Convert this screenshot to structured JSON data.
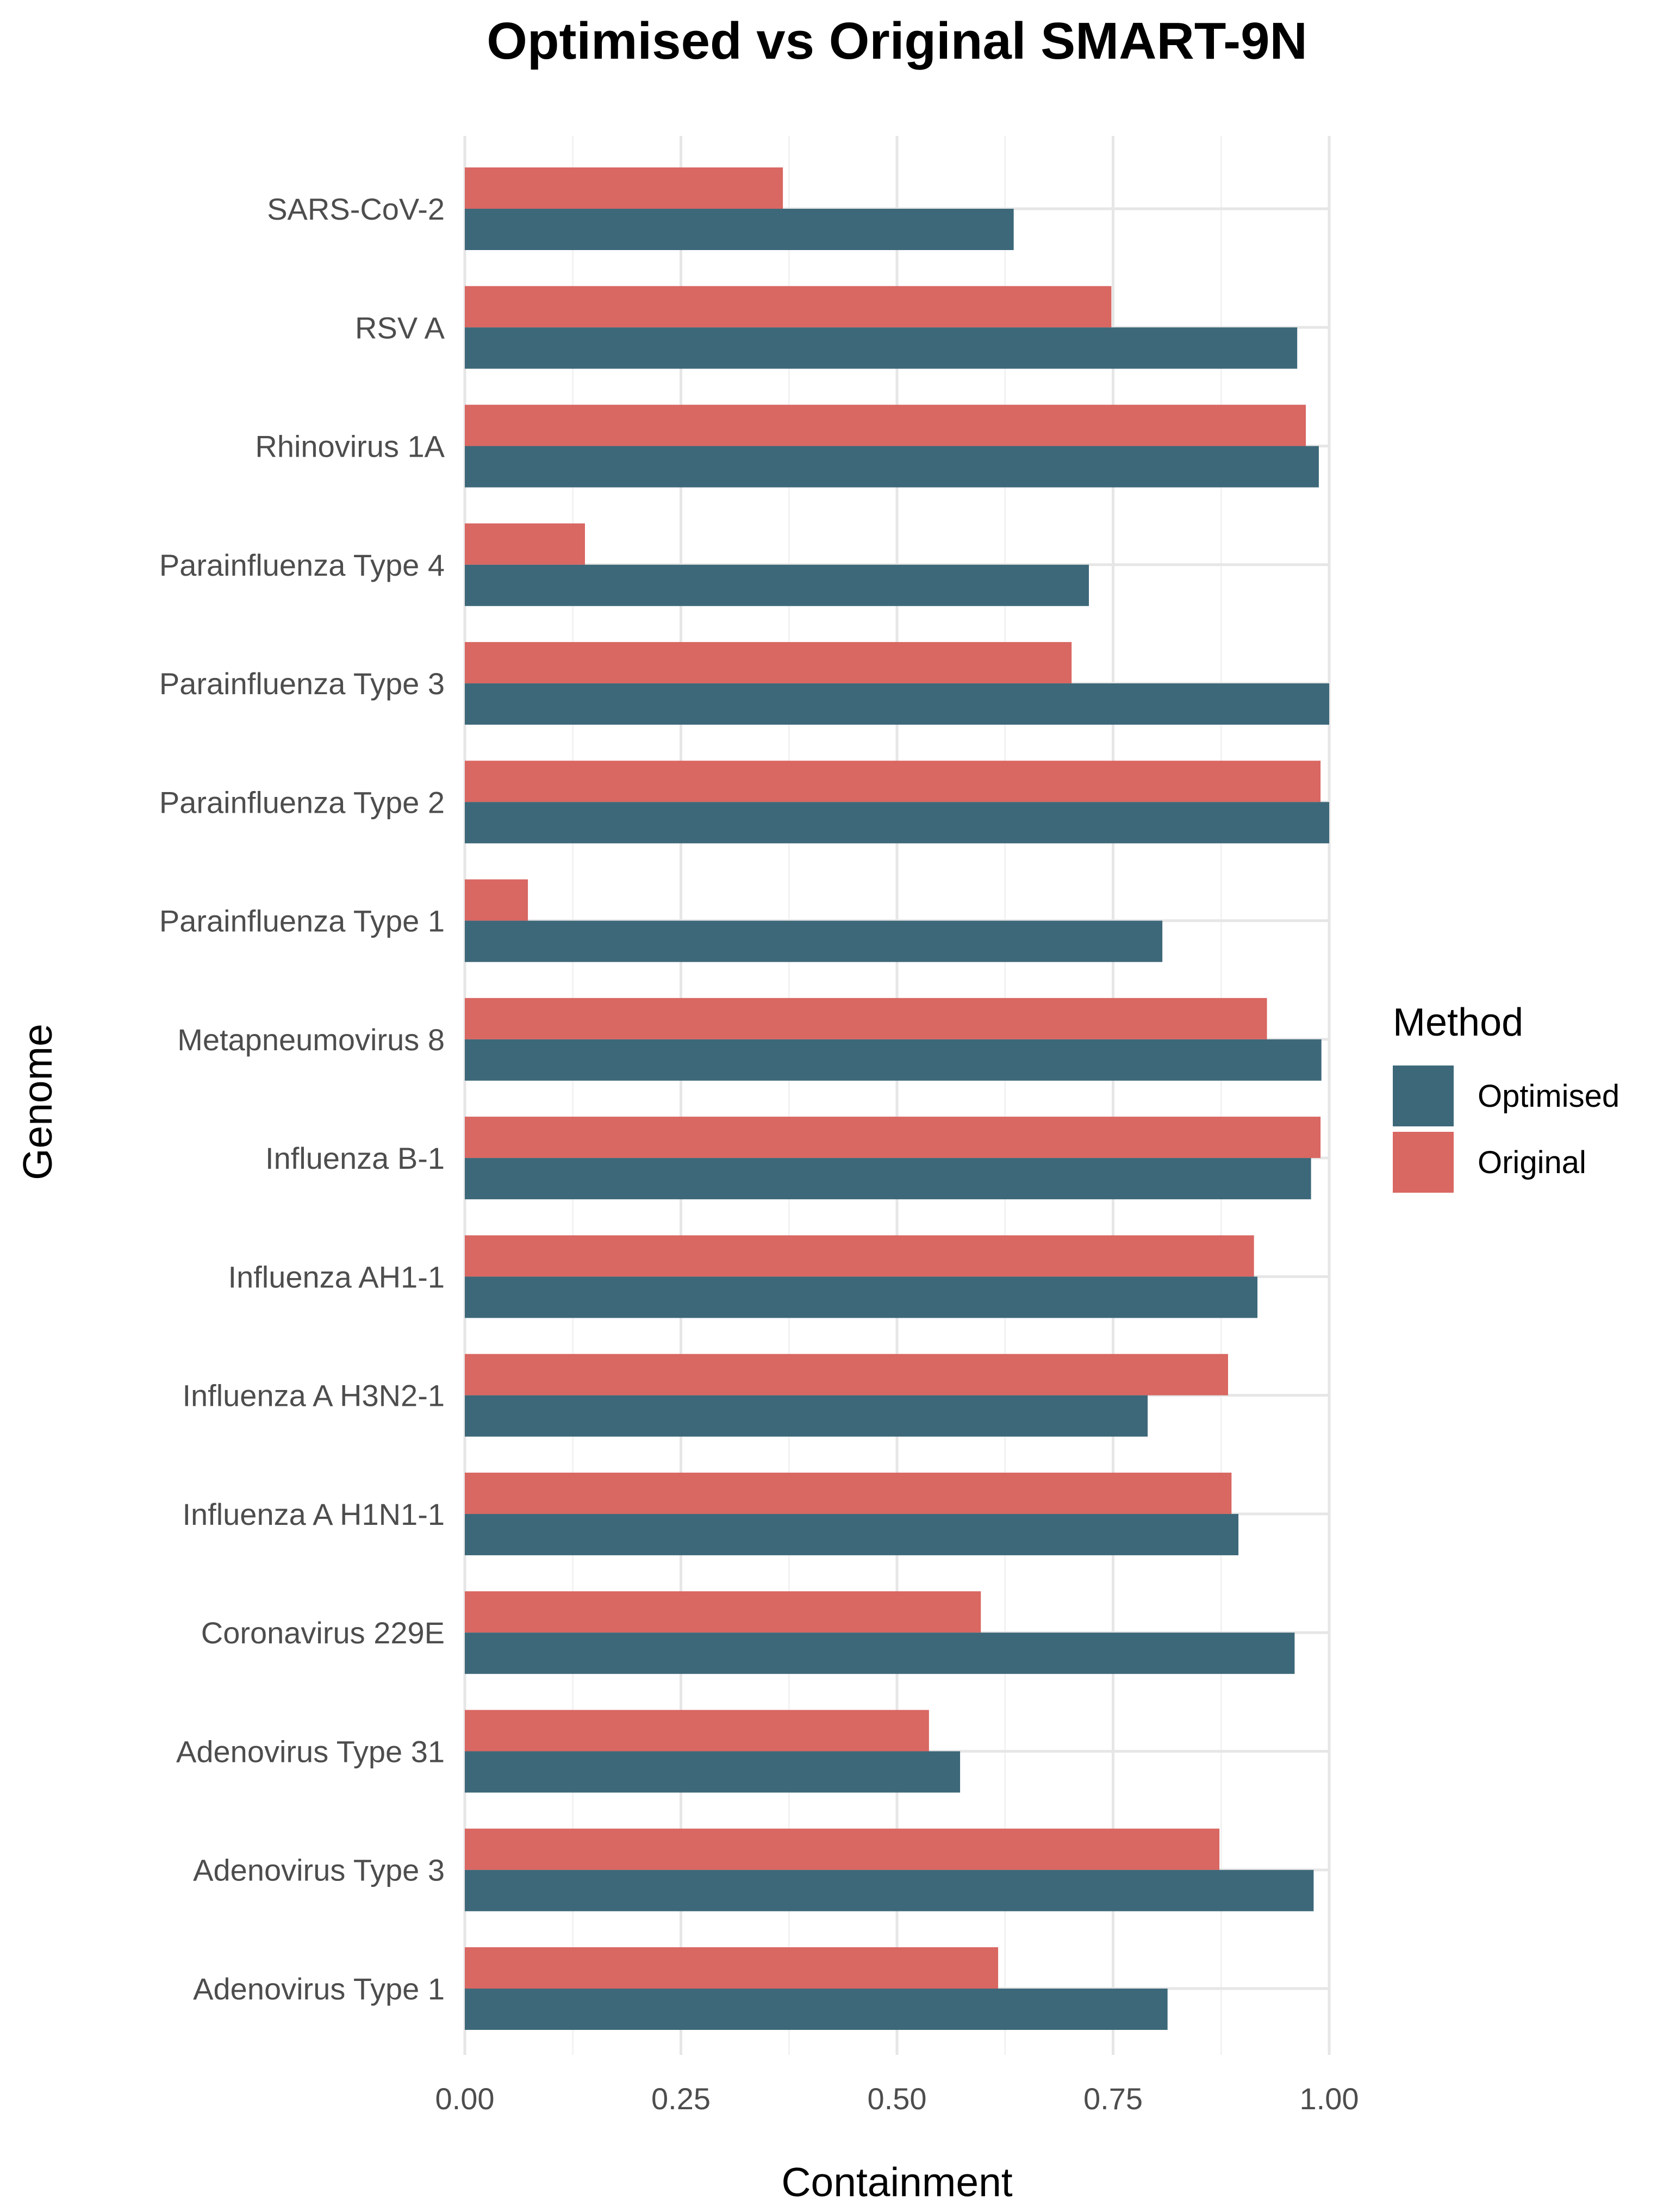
{
  "chart_data": {
    "type": "bar",
    "orientation": "horizontal",
    "title": "Optimised vs Original SMART-9N",
    "xlabel": "Containment",
    "ylabel": "Genome",
    "xlim": [
      0,
      1.0
    ],
    "x_ticks": [
      "0.00",
      "0.25",
      "0.50",
      "0.75",
      "1.00"
    ],
    "grid": true,
    "legend": {
      "title": "Method",
      "position": "right",
      "entries": [
        "Optimised",
        "Original"
      ]
    },
    "categories": [
      "SARS-CoV-2",
      "RSV A",
      "Rhinovirus 1A",
      "Parainfluenza Type 4",
      "Parainfluenza Type 3",
      "Parainfluenza Type 2",
      "Parainfluenza Type 1",
      "Metapneumovirus 8",
      "Influenza B-1",
      "Influenza AH1-1",
      "Influenza A H3N2-1",
      "Influenza A H1N1-1",
      "Coronavirus 229E",
      "Adenovirus Type 31",
      "Adenovirus Type 3",
      "Adenovirus Type 1"
    ],
    "series": [
      {
        "name": "Optimised",
        "color": "#3d6879",
        "values": [
          0.635,
          0.963,
          0.988,
          0.722,
          1.0,
          1.0,
          0.807,
          0.991,
          0.979,
          0.917,
          0.79,
          0.895,
          0.96,
          0.573,
          0.982,
          0.813
        ]
      },
      {
        "name": "Original",
        "color": "#d96762",
        "values": [
          0.368,
          0.748,
          0.973,
          0.139,
          0.702,
          0.99,
          0.073,
          0.928,
          0.99,
          0.913,
          0.883,
          0.887,
          0.597,
          0.537,
          0.873,
          0.617
        ]
      }
    ]
  }
}
